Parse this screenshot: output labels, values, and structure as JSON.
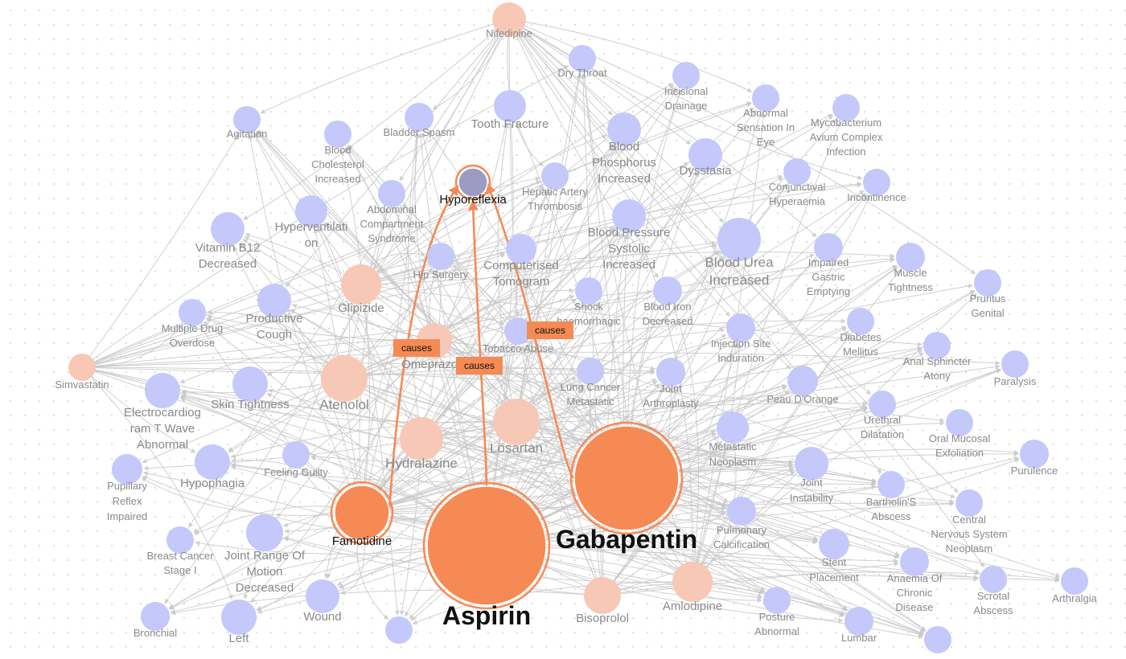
{
  "graph": {
    "colors": {
      "side_effect": "#c4c8fa",
      "drug": "#f8c8b6",
      "drug_selected": "#f58a55",
      "target": "#9a9cc4",
      "edge": "#c8c8c8",
      "highlight": "#f58a55"
    },
    "highlight_edges": [
      {
        "from": "Famotidine",
        "to": "Hyporeflexia",
        "label": "causes"
      },
      {
        "from": "Aspirin",
        "to": "Hyporeflexia",
        "label": "causes"
      },
      {
        "from": "Gabapentin",
        "to": "Hyporeflexia",
        "label": "causes"
      }
    ],
    "nodes": [
      {
        "id": "Nifedipine",
        "label": "Nifedipine",
        "type": "drug"
      },
      {
        "id": "Dry Throat",
        "label": "Dry Throat",
        "type": "side_effect"
      },
      {
        "id": "Incisional Drainage",
        "label": "Incisional Drainage",
        "type": "side_effect"
      },
      {
        "id": "Agitation",
        "label": "Agitation",
        "type": "side_effect"
      },
      {
        "id": "Blood Cholesterol Increased",
        "label": "Blood Cholesterol Increased",
        "type": "side_effect"
      },
      {
        "id": "Bladder Spasm",
        "label": "Bladder Spasm",
        "type": "side_effect"
      },
      {
        "id": "Tooth Fracture",
        "label": "Tooth Fracture",
        "type": "side_effect"
      },
      {
        "id": "Blood Phosphorus Increased",
        "label": "Blood Phosphorus Increased",
        "type": "side_effect"
      },
      {
        "id": "Abnormal Sensation In Eye",
        "label": "Abnormal Sensation In Eye",
        "type": "side_effect"
      },
      {
        "id": "Mycobacterium Avium Complex Infection",
        "label": "Mycobacterium Avium Complex Infection",
        "type": "side_effect"
      },
      {
        "id": "Dysstasia",
        "label": "Dysstasia",
        "type": "side_effect"
      },
      {
        "id": "Hyporeflexia",
        "label": "Hyporeflexia",
        "type": "target"
      },
      {
        "id": "Hepatic Artery Thrombosis",
        "label": "Hepatic Artery Thrombosis",
        "type": "side_effect"
      },
      {
        "id": "Conjunctival Hyperaemia",
        "label": "Conjunctival Hyperaemia",
        "type": "side_effect"
      },
      {
        "id": "Incontinence",
        "label": "Incontinence",
        "type": "side_effect"
      },
      {
        "id": "Abdominal Compartment Syndrome",
        "label": "Abdominal Compartment Syndrome",
        "type": "side_effect"
      },
      {
        "id": "Hyperventilation",
        "label": "Hyperventilati on",
        "type": "side_effect"
      },
      {
        "id": "Vitamin B12 Decreased",
        "label": "Vitamin B12 Decreased",
        "type": "side_effect"
      },
      {
        "id": "Blood Pressure Systolic Increased",
        "label": "Blood Pressure Systolic Increased",
        "type": "side_effect"
      },
      {
        "id": "Blood Urea Increased",
        "label": "Blood Urea Increased",
        "type": "side_effect"
      },
      {
        "id": "Impaired Gastric Emptying",
        "label": "Impaired Gastric Emptying",
        "type": "side_effect"
      },
      {
        "id": "Muscle Tightness",
        "label": "Muscle Tightness",
        "type": "side_effect"
      },
      {
        "id": "Pruritus Genital",
        "label": "Pruritus Genital",
        "type": "side_effect"
      },
      {
        "id": "Hip Surgery",
        "label": "Hip Surgery",
        "type": "side_effect"
      },
      {
        "id": "Computerised Tomogram",
        "label": "Computerised Tomogram",
        "type": "side_effect"
      },
      {
        "id": "Glipizide",
        "label": "Glipizide",
        "type": "drug"
      },
      {
        "id": "Productive Cough",
        "label": "Productive Cough",
        "type": "side_effect"
      },
      {
        "id": "Multiple Drug Overdose",
        "label": "Multiple Drug Overdose",
        "type": "side_effect"
      },
      {
        "id": "Shock Haemorrhagic",
        "label": "Shock haemorrhagic",
        "type": "side_effect"
      },
      {
        "id": "Blood Iron Decreased",
        "label": "Blood Iron Decreased",
        "type": "side_effect"
      },
      {
        "id": "Injection Site Induration",
        "label": "Injection Site Induration",
        "type": "side_effect"
      },
      {
        "id": "Diabetes Mellitus",
        "label": "Diabetes Mellitus",
        "type": "side_effect"
      },
      {
        "id": "Anal Sphincter Atony",
        "label": "Anal Sphincter Atony",
        "type": "side_effect"
      },
      {
        "id": "Paralysis",
        "label": "Paralysis",
        "type": "side_effect"
      },
      {
        "id": "Simvastatin",
        "label": "Simvastatin",
        "type": "drug"
      },
      {
        "id": "Tobacco Abuse",
        "label": "Tobacco Abuse",
        "type": "side_effect"
      },
      {
        "id": "Omeprazole",
        "label": "Omeprazole",
        "type": "drug"
      },
      {
        "id": "Atenolol",
        "label": "Atenolol",
        "type": "drug"
      },
      {
        "id": "Skin Tightness",
        "label": "Skin Tightness",
        "type": "side_effect"
      },
      {
        "id": "Electrocardiogram T Wave Abnormal",
        "label": "Electrocardiog ram T Wave Abnormal",
        "type": "side_effect"
      },
      {
        "id": "Lung Cancer Metastatic",
        "label": "Lung Cancer Metastatic",
        "type": "side_effect"
      },
      {
        "id": "Joint Arthroplasty",
        "label": "Joint Arthroplasty",
        "type": "side_effect"
      },
      {
        "id": "Peau D'Orange",
        "label": "Peau D'Orange",
        "type": "side_effect"
      },
      {
        "id": "Urethral Dilatation",
        "label": "Urethral Dilatation",
        "type": "side_effect"
      },
      {
        "id": "Oral Mucosal Exfoliation",
        "label": "Oral Mucosal Exfoliation",
        "type": "side_effect"
      },
      {
        "id": "Purulence",
        "label": "Purulence",
        "type": "side_effect"
      },
      {
        "id": "Losartan",
        "label": "Losartan",
        "type": "drug"
      },
      {
        "id": "Hydralazine",
        "label": "Hydralazine",
        "type": "drug"
      },
      {
        "id": "Metastatic Neoplasm",
        "label": "Metastatic Neoplasm",
        "type": "side_effect"
      },
      {
        "id": "Feeling Guilty",
        "label": "Feeling Guilty",
        "type": "side_effect"
      },
      {
        "id": "Hypophagia",
        "label": "Hypophagia",
        "type": "side_effect"
      },
      {
        "id": "Pupillary Reflex Impaired",
        "label": "Pupillary Reflex Impaired",
        "type": "side_effect"
      },
      {
        "id": "Joint Instability",
        "label": "Joint Instability",
        "type": "side_effect"
      },
      {
        "id": "Bartholin's Abscess",
        "label": "Bartholin'S Abscess",
        "type": "side_effect"
      },
      {
        "id": "Central Nervous System Neoplasm",
        "label": "Central Nervous System Neoplasm",
        "type": "side_effect"
      },
      {
        "id": "Famotidine",
        "label": "Famotidine",
        "type": "drug_selected"
      },
      {
        "id": "Gabapentin",
        "label": "Gabapentin",
        "type": "drug_selected"
      },
      {
        "id": "Aspirin",
        "label": "Aspirin",
        "type": "drug_selected"
      },
      {
        "id": "Pulmonary Calcification",
        "label": "Pulmonary Calcification",
        "type": "side_effect"
      },
      {
        "id": "Breast Cancer Stage I",
        "label": "Breast Cancer Stage I",
        "type": "side_effect"
      },
      {
        "id": "Joint Range Of Motion Decreased",
        "label": "Joint Range Of Motion Decreased",
        "type": "side_effect"
      },
      {
        "id": "Stent Placement",
        "label": "Stent Placement",
        "type": "side_effect"
      },
      {
        "id": "Anaemia Of Chronic Disease",
        "label": "Anaemia Of Chronic Disease",
        "type": "side_effect"
      },
      {
        "id": "Scrotal Abscess",
        "label": "Scrotal Abscess",
        "type": "side_effect"
      },
      {
        "id": "Arthralgia",
        "label": "Arthralgia",
        "type": "side_effect"
      },
      {
        "id": "Wound",
        "label": "Wound",
        "type": "side_effect"
      },
      {
        "id": "Bisoprolol",
        "label": "Bisoprolol",
        "type": "drug"
      },
      {
        "id": "Amlodipine",
        "label": "Amlodipine",
        "type": "drug"
      },
      {
        "id": "Posture Abnormal",
        "label": "Posture Abnormal",
        "type": "side_effect"
      },
      {
        "id": "Bronchial",
        "label": "Bronchial",
        "type": "side_effect"
      },
      {
        "id": "Left",
        "label": "Left",
        "type": "side_effect"
      },
      {
        "id": "Lumbar",
        "label": "Lumbar",
        "type": "side_effect"
      },
      {
        "id": "Unlabeled 1",
        "label": "",
        "type": "side_effect"
      },
      {
        "id": "Unlabeled 2",
        "label": "",
        "type": "side_effect"
      }
    ]
  }
}
